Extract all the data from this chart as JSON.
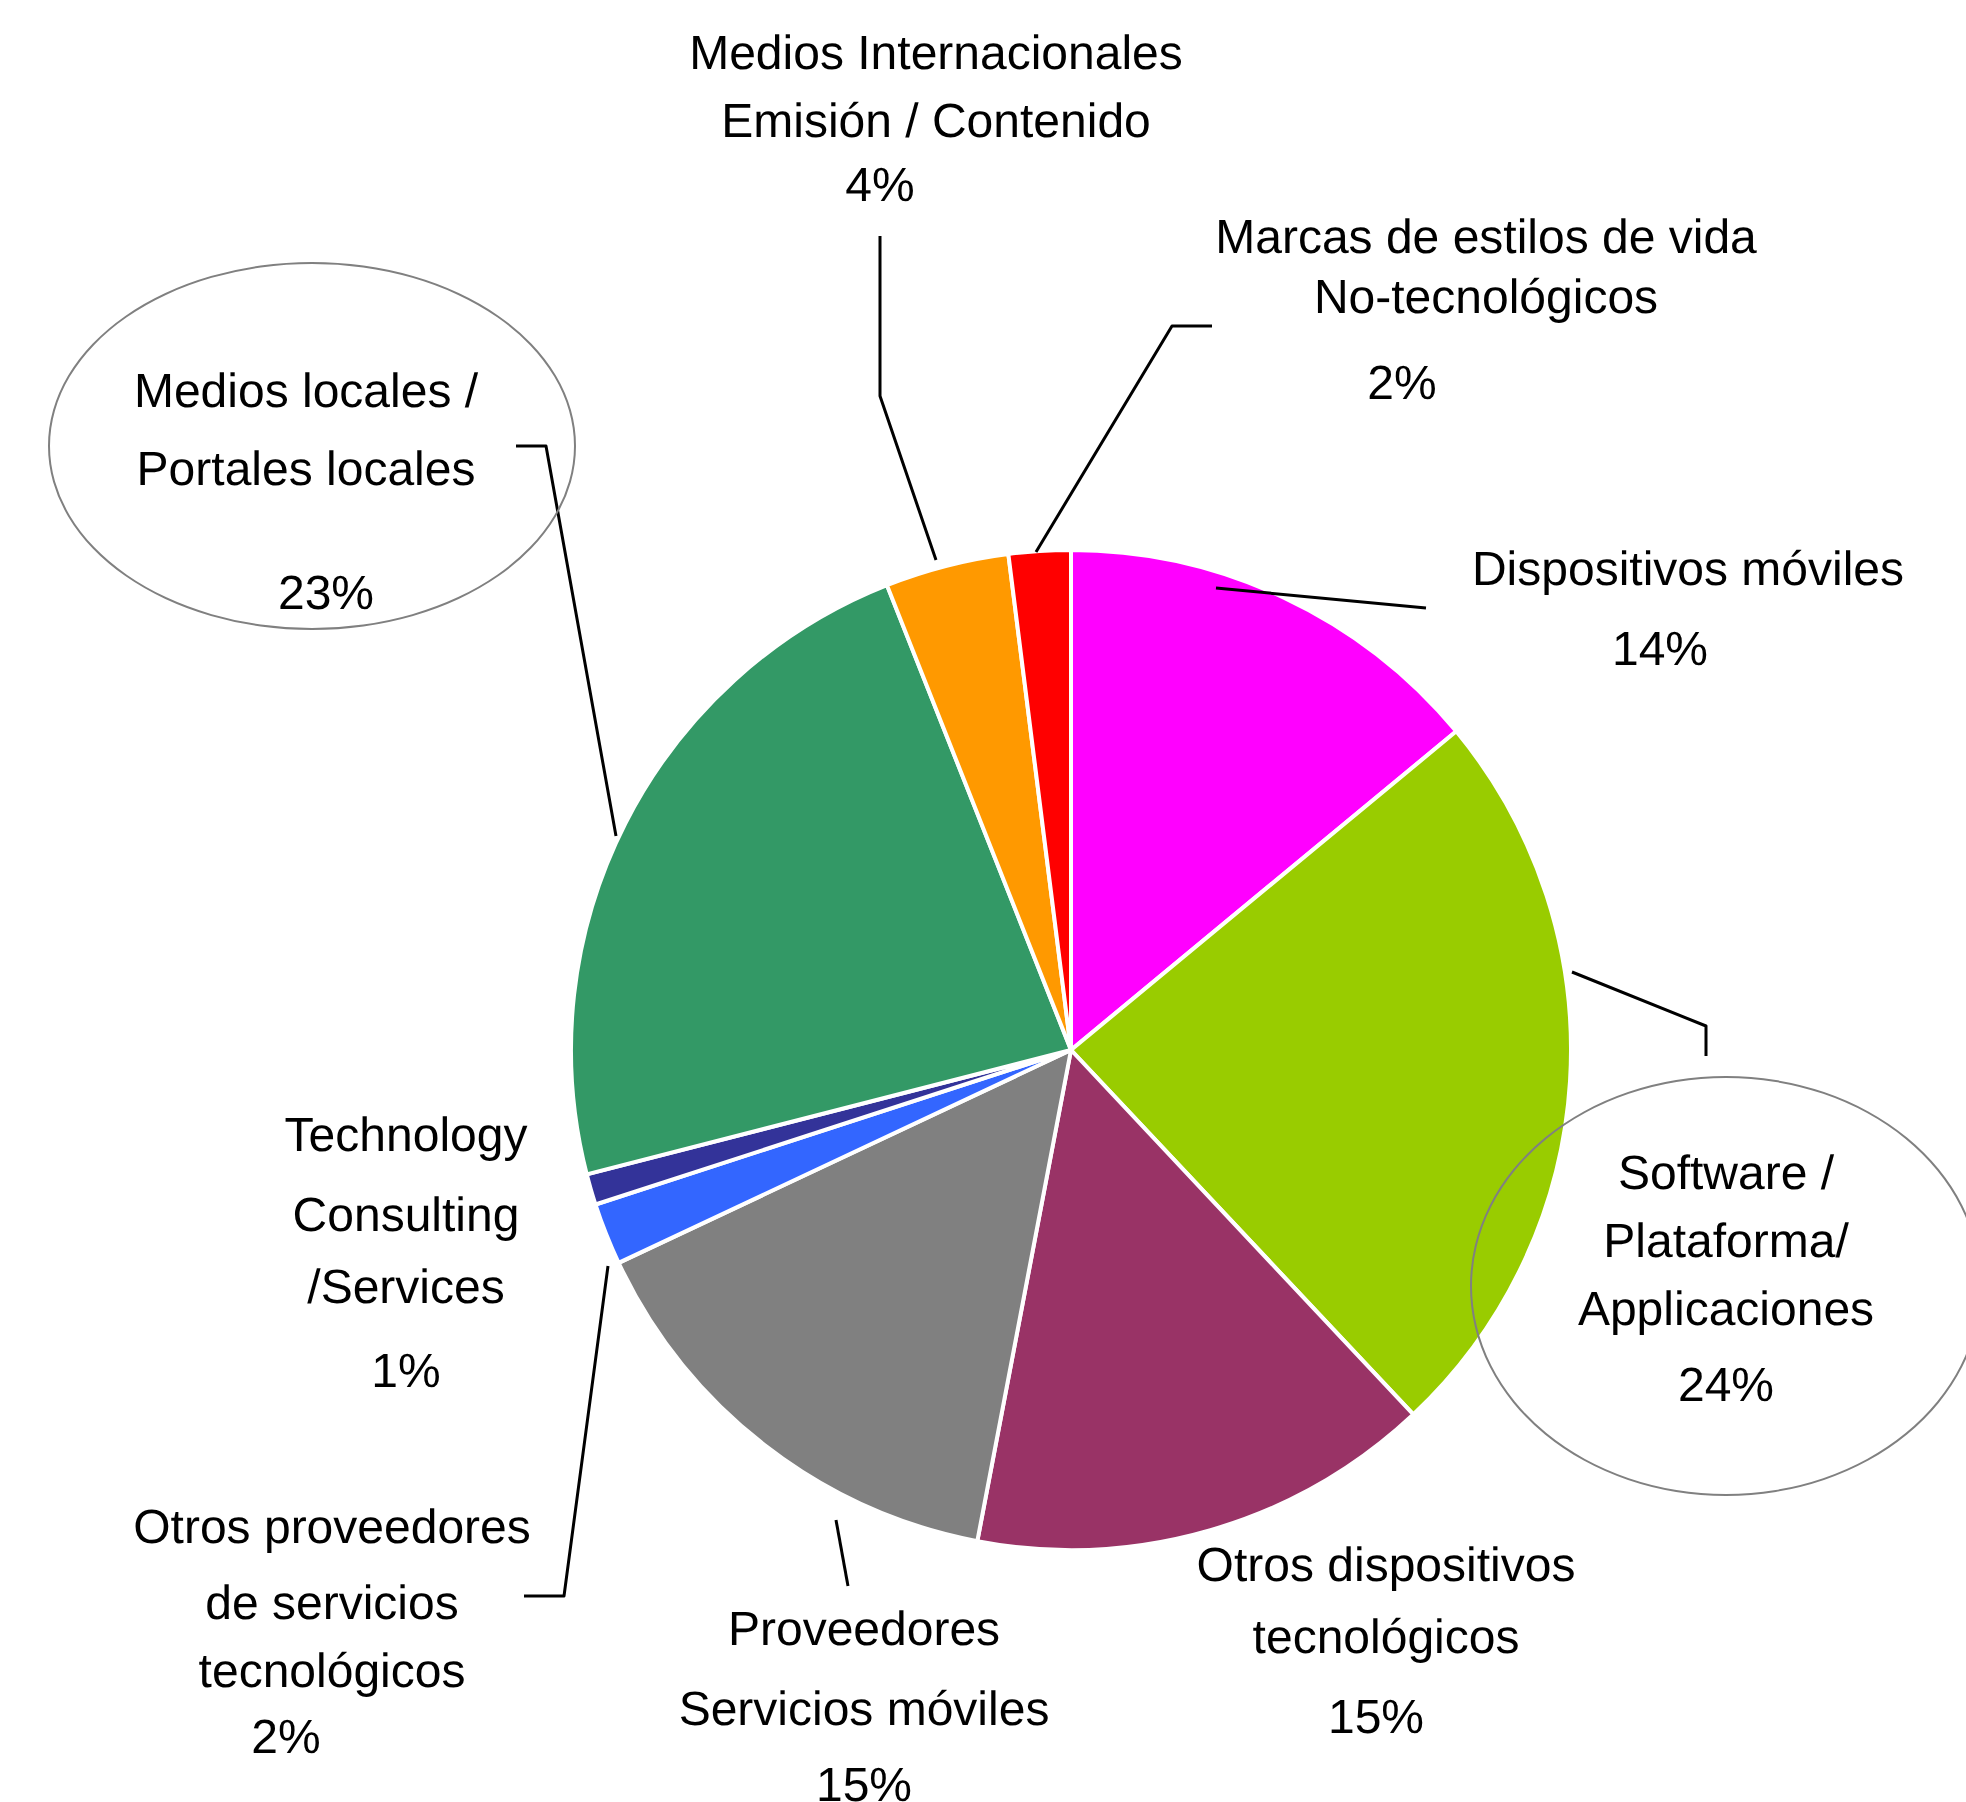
{
  "chart_data": {
    "type": "pie",
    "categories": [
      "Dispositivos móviles",
      "Software /\nPlataforma/\nApplicaciones",
      "Otros dispositivos\ntecnológicos",
      "Proveedores\nServicios móviles",
      "Otros proveedores\nde servicios\ntecnológicos",
      "Technology\nConsulting\n/Services",
      "Medios locales /\nPortales locales",
      "Medios Internacionales\nEmisión / Contenido",
      "Marcas de estilos de vida\nNo-tecnológicos"
    ],
    "values": [
      14,
      24,
      15,
      15,
      2,
      1,
      23,
      4,
      2
    ],
    "value_labels": [
      "14%",
      "24%",
      "15%",
      "15%",
      "2%",
      "1%",
      "23%",
      "4%",
      "2%"
    ],
    "colors": [
      "#ff00ff",
      "#99cc00",
      "#993366",
      "#808080",
      "#3366ff",
      "#333399",
      "#339966",
      "#ff9900",
      "#ff0000"
    ],
    "legend": false
  }
}
